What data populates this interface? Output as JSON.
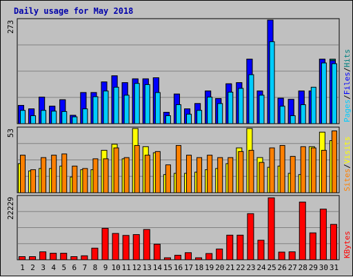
{
  "chart_data": {
    "type": "bar",
    "title": "Daily usage for May 2018",
    "days": [
      "1",
      "2",
      "3",
      "4",
      "5",
      "6",
      "7",
      "8",
      "9",
      "10",
      "11",
      "12",
      "13",
      "14",
      "15",
      "16",
      "17",
      "18",
      "19",
      "20",
      "21",
      "22",
      "23",
      "24",
      "25",
      "26",
      "27",
      "28",
      "29",
      "30",
      "31"
    ],
    "weekend_days": [
      "5",
      "6",
      "12",
      "13",
      "19",
      "20",
      "26",
      "27"
    ],
    "colors": {
      "title": "#0000aa",
      "weekday_label": "#000000",
      "weekend_label": "#008000",
      "hits": "#008080",
      "files": "#0000ff",
      "pages": "#00ccff",
      "visits": "#ffff00",
      "sites": "#ff8000",
      "kbytes": "#ff0000",
      "panel_bg": "#c0c0c0",
      "grid": "#808080"
    },
    "panels": [
      {
        "name": "hits-files-pages",
        "max_label": "273",
        "ylim": [
          0,
          273
        ],
        "legend": [
          "Pages",
          "/",
          "Files",
          "/",
          "Hits"
        ],
        "series": [
          {
            "name": "Hits",
            "values": [
              48,
              39,
              70,
              46,
              63,
              22,
              82,
              82,
              110,
              126,
              108,
              118,
              118,
              121,
              30,
              78,
              39,
              53,
              86,
              66,
              105,
              108,
              170,
              86,
              273,
              67,
              64,
              86,
              86,
              170,
              170
            ]
          },
          {
            "name": "Files",
            "values": [
              48,
              39,
              70,
              46,
              63,
              22,
              82,
              82,
              110,
              126,
              108,
              118,
              118,
              121,
              30,
              78,
              39,
              53,
              86,
              66,
              105,
              108,
              170,
              86,
              273,
              67,
              64,
              86,
              86,
              170,
              166
            ]
          },
          {
            "name": "Pages",
            "values": [
              35,
              21,
              35,
              33,
              32,
              18,
              39,
              71,
              86,
              96,
              75,
              106,
              103,
              82,
              21,
              50,
              25,
              35,
              70,
              53,
              83,
              93,
              129,
              75,
              216,
              46,
              21,
              50,
              96,
              160,
              158
            ]
          }
        ]
      },
      {
        "name": "visits-sites",
        "max_label": "53",
        "ylim": [
          0,
          53
        ],
        "legend": [
          "Sites",
          "/",
          "Visits"
        ],
        "series": [
          {
            "name": "Visits",
            "values": [
              24,
              18,
              20,
              20,
              22,
              13,
              19,
              19,
              35,
              40,
              28,
              53,
              38,
              33,
              15,
              16,
              16,
              17,
              19,
              20,
              24,
              37,
              53,
              29,
              21,
              22,
              16,
              15,
              38,
              50,
              43
            ]
          },
          {
            "name": "Sites",
            "values": [
              31,
              19,
              29,
              31,
              32,
              22,
              20,
              28,
              28,
              37,
              29,
              39,
              31,
              34,
              23,
              39,
              31,
              29,
              31,
              29,
              29,
              34,
              35,
              25,
              37,
              39,
              30,
              38,
              37,
              35,
              51
            ]
          }
        ]
      },
      {
        "name": "kbytes",
        "max_label": "22229",
        "ylim": [
          0,
          22229
        ],
        "legend": [
          "KBytes"
        ],
        "series": [
          {
            "name": "KBytes",
            "values": [
              1100,
              1100,
              2800,
              2300,
              2300,
              1100,
              1400,
              4100,
              11100,
              9300,
              8600,
              8900,
              10700,
              5500,
              700,
              1600,
              2500,
              700,
              2200,
              3800,
              8700,
              8700,
              16300,
              6900,
              21900,
              2700,
              2800,
              20400,
              9500,
              17900,
              12500
            ]
          }
        ]
      }
    ]
  }
}
